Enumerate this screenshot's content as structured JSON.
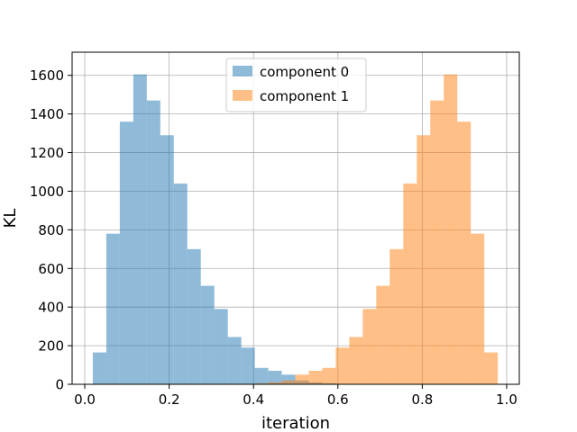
{
  "chart_data": {
    "type": "bar",
    "subtype": "overlapping-histogram",
    "xlabel": "iteration",
    "ylabel": "KL",
    "xlim": [
      -0.03,
      1.03
    ],
    "ylim": [
      0,
      1720
    ],
    "xticks": [
      0.0,
      0.2,
      0.4,
      0.6,
      0.8,
      1.0
    ],
    "xtick_labels": [
      "0.0",
      "0.2",
      "0.4",
      "0.6",
      "0.8",
      "1.0"
    ],
    "yticks": [
      0,
      200,
      400,
      600,
      800,
      1000,
      1200,
      1400,
      1600
    ],
    "ytick_labels": [
      "0",
      "200",
      "400",
      "600",
      "800",
      "1000",
      "1200",
      "1400",
      "1600"
    ],
    "grid": true,
    "legend": "top-center",
    "bin_edges": [
      0.019,
      0.051,
      0.083,
      0.115,
      0.147,
      0.179,
      0.211,
      0.243,
      0.275,
      0.307,
      0.339,
      0.371,
      0.403,
      0.435,
      0.467,
      0.499,
      0.531,
      0.563,
      0.595,
      0.627,
      0.659,
      0.691,
      0.723,
      0.755,
      0.787,
      0.819,
      0.851,
      0.883,
      0.915,
      0.947,
      0.979
    ],
    "series": [
      {
        "name": "component 0",
        "color": "#1f77b4",
        "opacity": 0.5,
        "values": [
          165,
          780,
          1360,
          1605,
          1470,
          1290,
          1040,
          700,
          510,
          390,
          245,
          190,
          85,
          70,
          50,
          20,
          10,
          5,
          0,
          0,
          0,
          0,
          0,
          0,
          0,
          0,
          0,
          0,
          0,
          0
        ]
      },
      {
        "name": "component 1",
        "color": "#ff7f0e",
        "opacity": 0.5,
        "values": [
          0,
          0,
          0,
          0,
          0,
          0,
          0,
          0,
          0,
          0,
          0,
          0,
          5,
          10,
          20,
          50,
          70,
          85,
          190,
          245,
          390,
          510,
          700,
          1040,
          1290,
          1470,
          1605,
          1360,
          780,
          165
        ]
      }
    ]
  }
}
